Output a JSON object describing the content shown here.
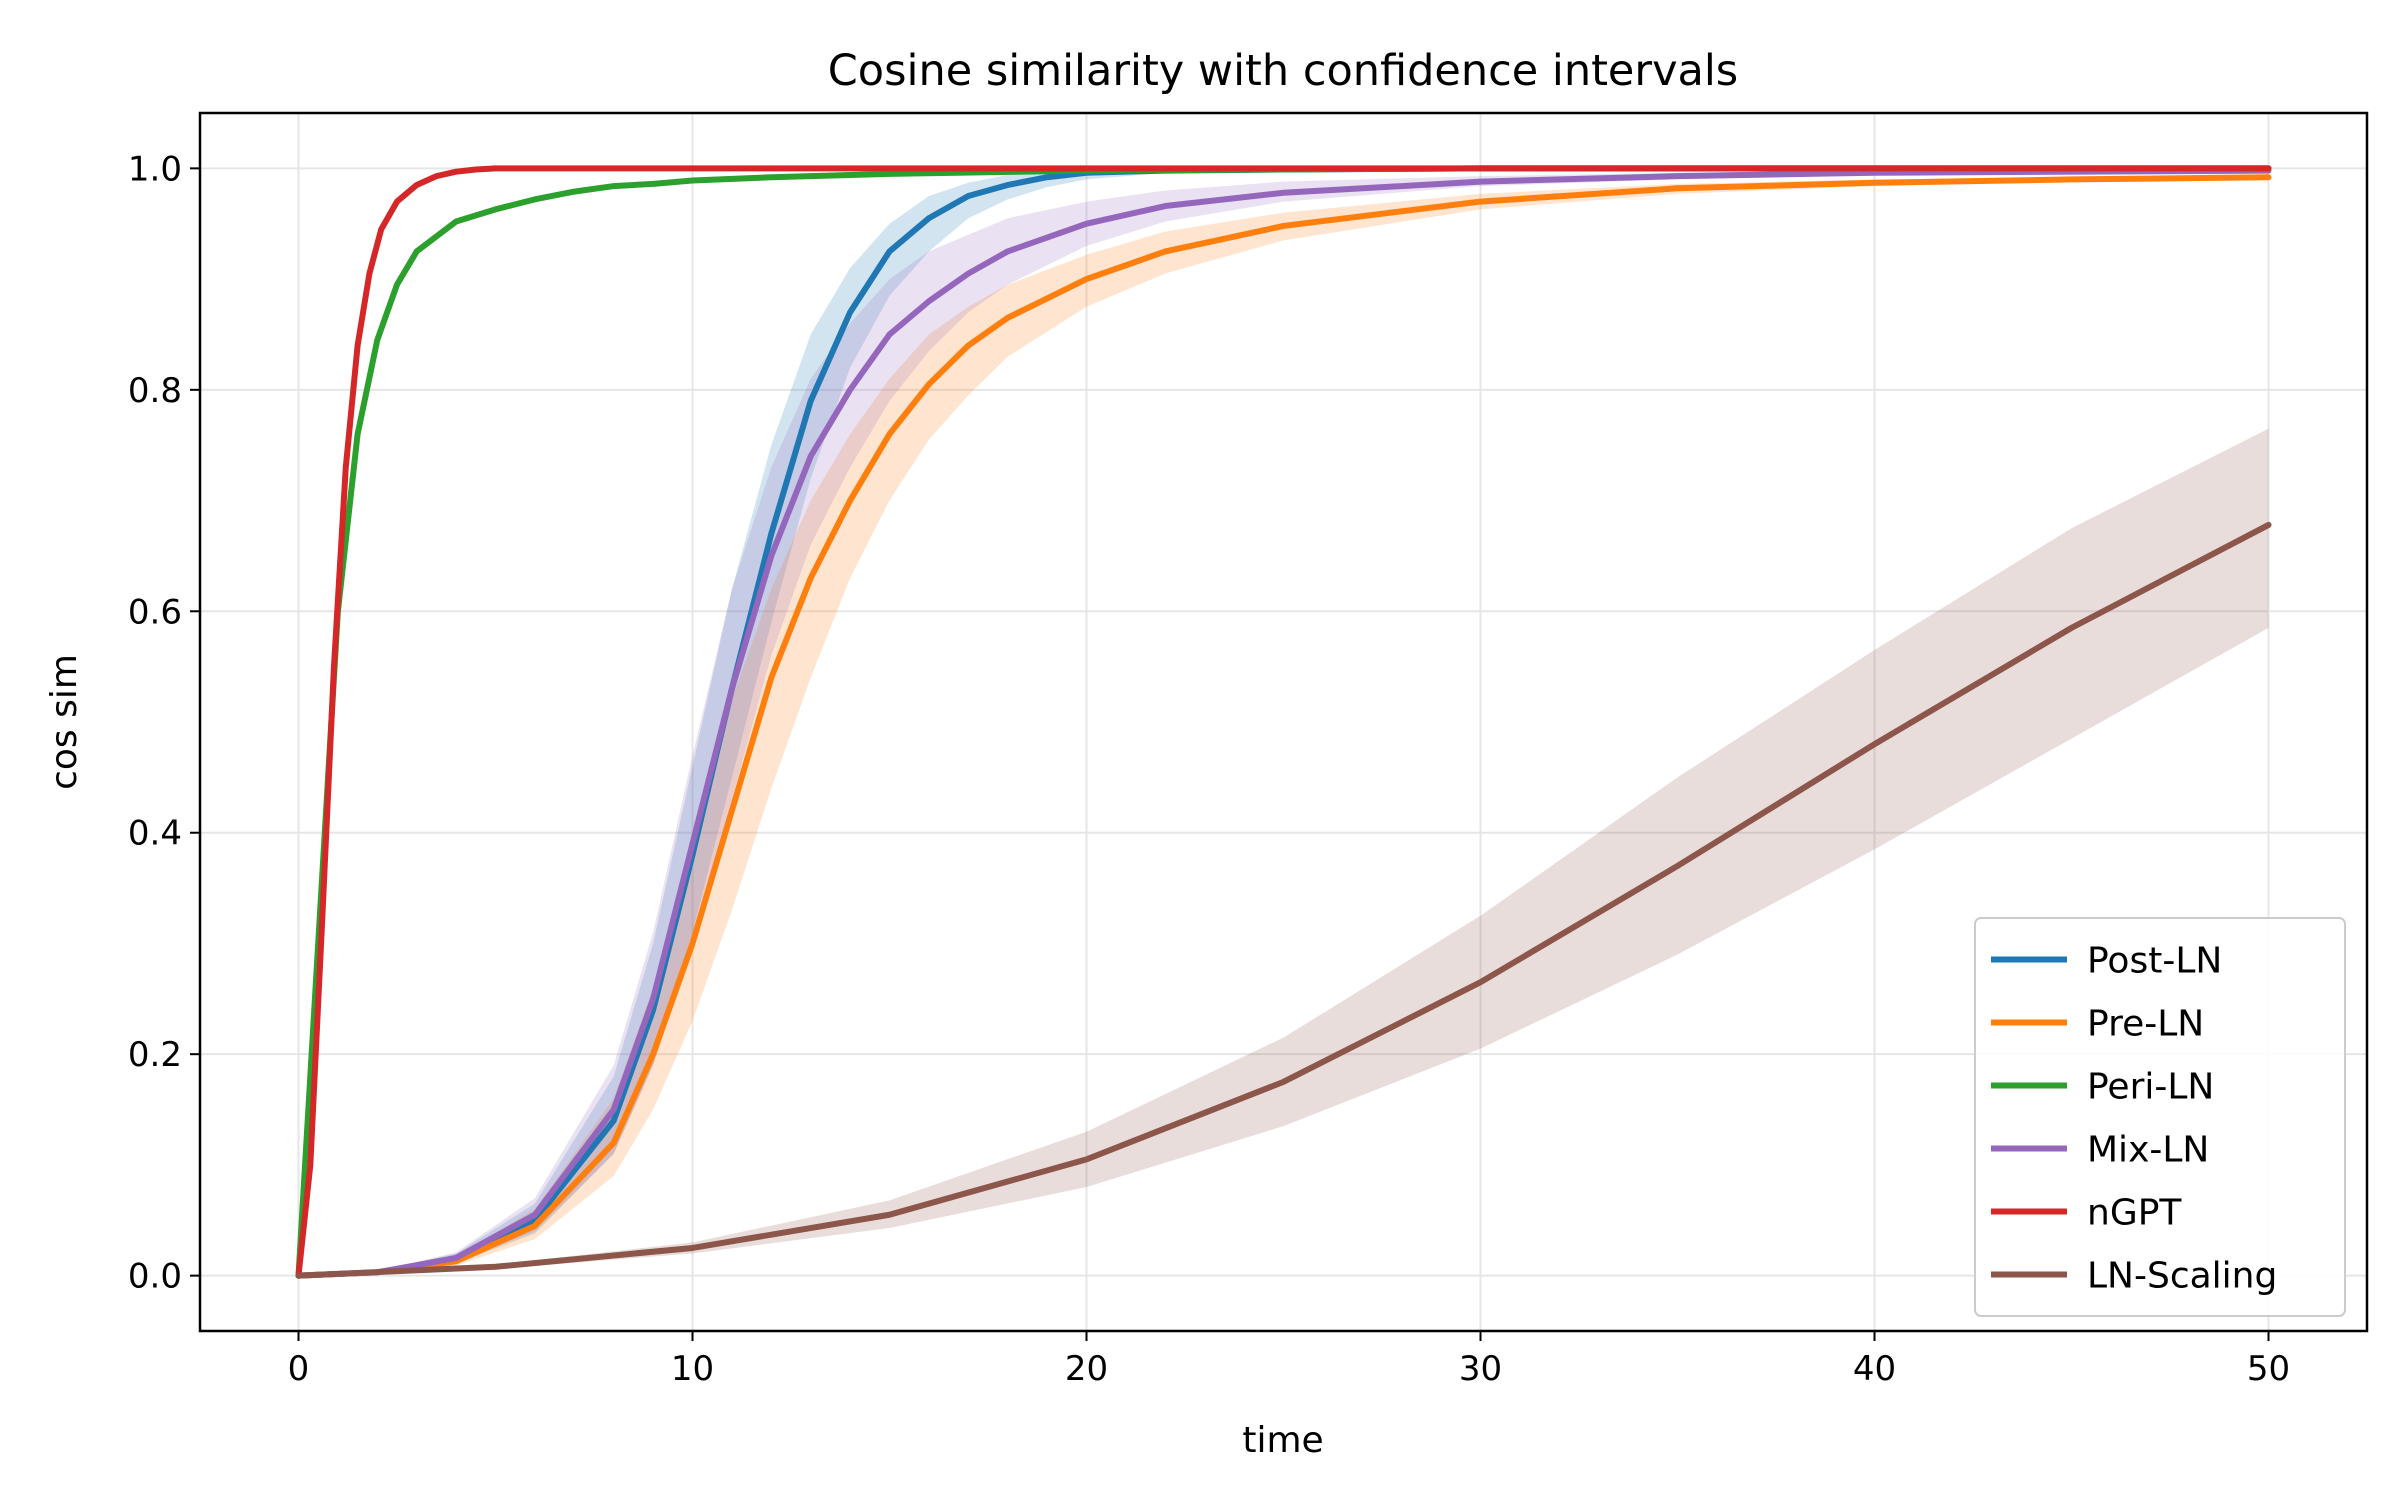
{
  "chart_data": {
    "type": "line",
    "title": "Cosine similarity with confidence intervals",
    "xlabel": "time",
    "ylabel": "cos sim",
    "xlim": [
      -2.5,
      52.5
    ],
    "ylim": [
      -0.05,
      1.05
    ],
    "xticks": [
      0,
      10,
      20,
      30,
      40,
      50
    ],
    "yticks": [
      0.0,
      0.2,
      0.4,
      0.6,
      0.8,
      1.0
    ],
    "xtick_labels": [
      "0",
      "10",
      "20",
      "30",
      "40",
      "50"
    ],
    "ytick_labels": [
      "0.0",
      "0.2",
      "0.4",
      "0.6",
      "0.8",
      "1.0"
    ],
    "grid": true,
    "legend_position": "lower-right",
    "series": [
      {
        "name": "Post-LN",
        "color": "#1f77b4",
        "x": [
          0,
          2,
          4,
          6,
          8,
          9,
          10,
          11,
          12,
          13,
          14,
          15,
          16,
          17,
          18,
          19,
          20,
          22,
          25,
          30,
          40,
          50
        ],
        "y": [
          0,
          0.003,
          0.015,
          0.05,
          0.14,
          0.24,
          0.38,
          0.53,
          0.67,
          0.79,
          0.87,
          0.925,
          0.955,
          0.975,
          0.985,
          0.992,
          0.996,
          0.998,
          0.999,
          1.0,
          1.0,
          1.0
        ],
        "ci_lower": [
          0,
          0.002,
          0.011,
          0.038,
          0.11,
          0.19,
          0.31,
          0.45,
          0.59,
          0.72,
          0.82,
          0.885,
          0.925,
          0.955,
          0.972,
          0.983,
          0.99,
          0.996,
          0.998,
          0.999,
          1.0,
          1.0
        ],
        "ci_upper": [
          0,
          0.004,
          0.02,
          0.065,
          0.18,
          0.3,
          0.46,
          0.62,
          0.75,
          0.85,
          0.91,
          0.95,
          0.975,
          0.987,
          0.994,
          0.997,
          0.998,
          0.999,
          1.0,
          1.0,
          1.0,
          1.0
        ]
      },
      {
        "name": "Pre-LN",
        "color": "#ff7f0e",
        "x": [
          0,
          2,
          4,
          6,
          8,
          9,
          10,
          11,
          12,
          13,
          14,
          15,
          16,
          17,
          18,
          20,
          22,
          25,
          30,
          35,
          40,
          45,
          50
        ],
        "y": [
          0,
          0.003,
          0.013,
          0.045,
          0.12,
          0.2,
          0.3,
          0.42,
          0.54,
          0.63,
          0.7,
          0.76,
          0.805,
          0.84,
          0.865,
          0.9,
          0.925,
          0.948,
          0.97,
          0.982,
          0.987,
          0.99,
          0.992
        ],
        "ci_lower": [
          0,
          0.002,
          0.009,
          0.033,
          0.09,
          0.15,
          0.23,
          0.33,
          0.44,
          0.54,
          0.63,
          0.7,
          0.755,
          0.795,
          0.83,
          0.875,
          0.905,
          0.935,
          0.963,
          0.977,
          0.984,
          0.988,
          0.99
        ],
        "ci_upper": [
          0,
          0.004,
          0.018,
          0.06,
          0.16,
          0.26,
          0.38,
          0.52,
          0.62,
          0.7,
          0.76,
          0.81,
          0.85,
          0.875,
          0.895,
          0.922,
          0.943,
          0.96,
          0.977,
          0.986,
          0.99,
          0.992,
          0.994
        ]
      },
      {
        "name": "Peri-LN",
        "color": "#2ca02c",
        "x": [
          0,
          0.5,
          1,
          1.5,
          2,
          2.5,
          3,
          4,
          5,
          6,
          7,
          8,
          9,
          10,
          12,
          15,
          20,
          30,
          40,
          50
        ],
        "y": [
          0,
          0.3,
          0.6,
          0.76,
          0.845,
          0.895,
          0.925,
          0.952,
          0.963,
          0.972,
          0.979,
          0.984,
          0.986,
          0.989,
          0.992,
          0.995,
          0.998,
          1.0,
          1.0,
          1.0
        ],
        "ci_lower": [
          0,
          0.3,
          0.6,
          0.76,
          0.845,
          0.895,
          0.925,
          0.952,
          0.963,
          0.972,
          0.979,
          0.984,
          0.986,
          0.989,
          0.992,
          0.995,
          0.998,
          1.0,
          1.0,
          1.0
        ],
        "ci_upper": [
          0,
          0.3,
          0.6,
          0.76,
          0.845,
          0.895,
          0.925,
          0.952,
          0.963,
          0.972,
          0.979,
          0.984,
          0.986,
          0.989,
          0.992,
          0.995,
          0.998,
          1.0,
          1.0,
          1.0
        ]
      },
      {
        "name": "Mix-LN",
        "color": "#9467bd",
        "x": [
          0,
          2,
          4,
          6,
          8,
          9,
          10,
          11,
          12,
          13,
          14,
          15,
          16,
          17,
          18,
          20,
          22,
          25,
          30,
          35,
          40,
          50
        ],
        "y": [
          0,
          0.003,
          0.016,
          0.055,
          0.15,
          0.25,
          0.39,
          0.53,
          0.65,
          0.74,
          0.8,
          0.85,
          0.88,
          0.905,
          0.925,
          0.95,
          0.966,
          0.978,
          0.988,
          0.993,
          0.996,
          0.998
        ],
        "ci_lower": [
          0,
          0.002,
          0.012,
          0.04,
          0.11,
          0.19,
          0.3,
          0.43,
          0.56,
          0.66,
          0.73,
          0.79,
          0.835,
          0.87,
          0.895,
          0.93,
          0.952,
          0.97,
          0.984,
          0.99,
          0.994,
          0.997
        ],
        "ci_upper": [
          0,
          0.004,
          0.021,
          0.07,
          0.19,
          0.31,
          0.47,
          0.62,
          0.73,
          0.81,
          0.86,
          0.9,
          0.925,
          0.94,
          0.955,
          0.97,
          0.98,
          0.988,
          0.993,
          0.996,
          0.998,
          0.999
        ]
      },
      {
        "name": "nGPT",
        "color": "#d62728",
        "x": [
          0,
          0.3,
          0.6,
          0.9,
          1.2,
          1.5,
          1.8,
          2.1,
          2.5,
          3,
          3.5,
          4,
          4.5,
          5,
          10,
          20,
          30,
          40,
          50
        ],
        "y": [
          0,
          0.1,
          0.32,
          0.55,
          0.73,
          0.84,
          0.905,
          0.945,
          0.97,
          0.985,
          0.993,
          0.997,
          0.999,
          1.0,
          1.0,
          1.0,
          1.0,
          1.0,
          1.0
        ],
        "ci_lower": [
          0,
          0.1,
          0.32,
          0.55,
          0.73,
          0.84,
          0.905,
          0.945,
          0.97,
          0.985,
          0.993,
          0.997,
          0.999,
          1.0,
          1.0,
          1.0,
          1.0,
          1.0,
          1.0
        ],
        "ci_upper": [
          0,
          0.1,
          0.32,
          0.55,
          0.73,
          0.84,
          0.905,
          0.945,
          0.97,
          0.985,
          0.993,
          0.997,
          0.999,
          1.0,
          1.0,
          1.0,
          1.0,
          1.0,
          1.0
        ]
      },
      {
        "name": "LN-Scaling",
        "color": "#8c564b",
        "x": [
          0,
          5,
          10,
          15,
          20,
          25,
          30,
          35,
          40,
          45,
          50
        ],
        "y": [
          0,
          0.008,
          0.025,
          0.055,
          0.105,
          0.175,
          0.265,
          0.37,
          0.48,
          0.585,
          0.678
        ],
        "ci_lower": [
          0,
          0.006,
          0.02,
          0.043,
          0.08,
          0.135,
          0.205,
          0.29,
          0.385,
          0.485,
          0.585
        ],
        "ci_upper": [
          0,
          0.01,
          0.03,
          0.068,
          0.13,
          0.215,
          0.325,
          0.45,
          0.565,
          0.675,
          0.765
        ]
      }
    ]
  }
}
